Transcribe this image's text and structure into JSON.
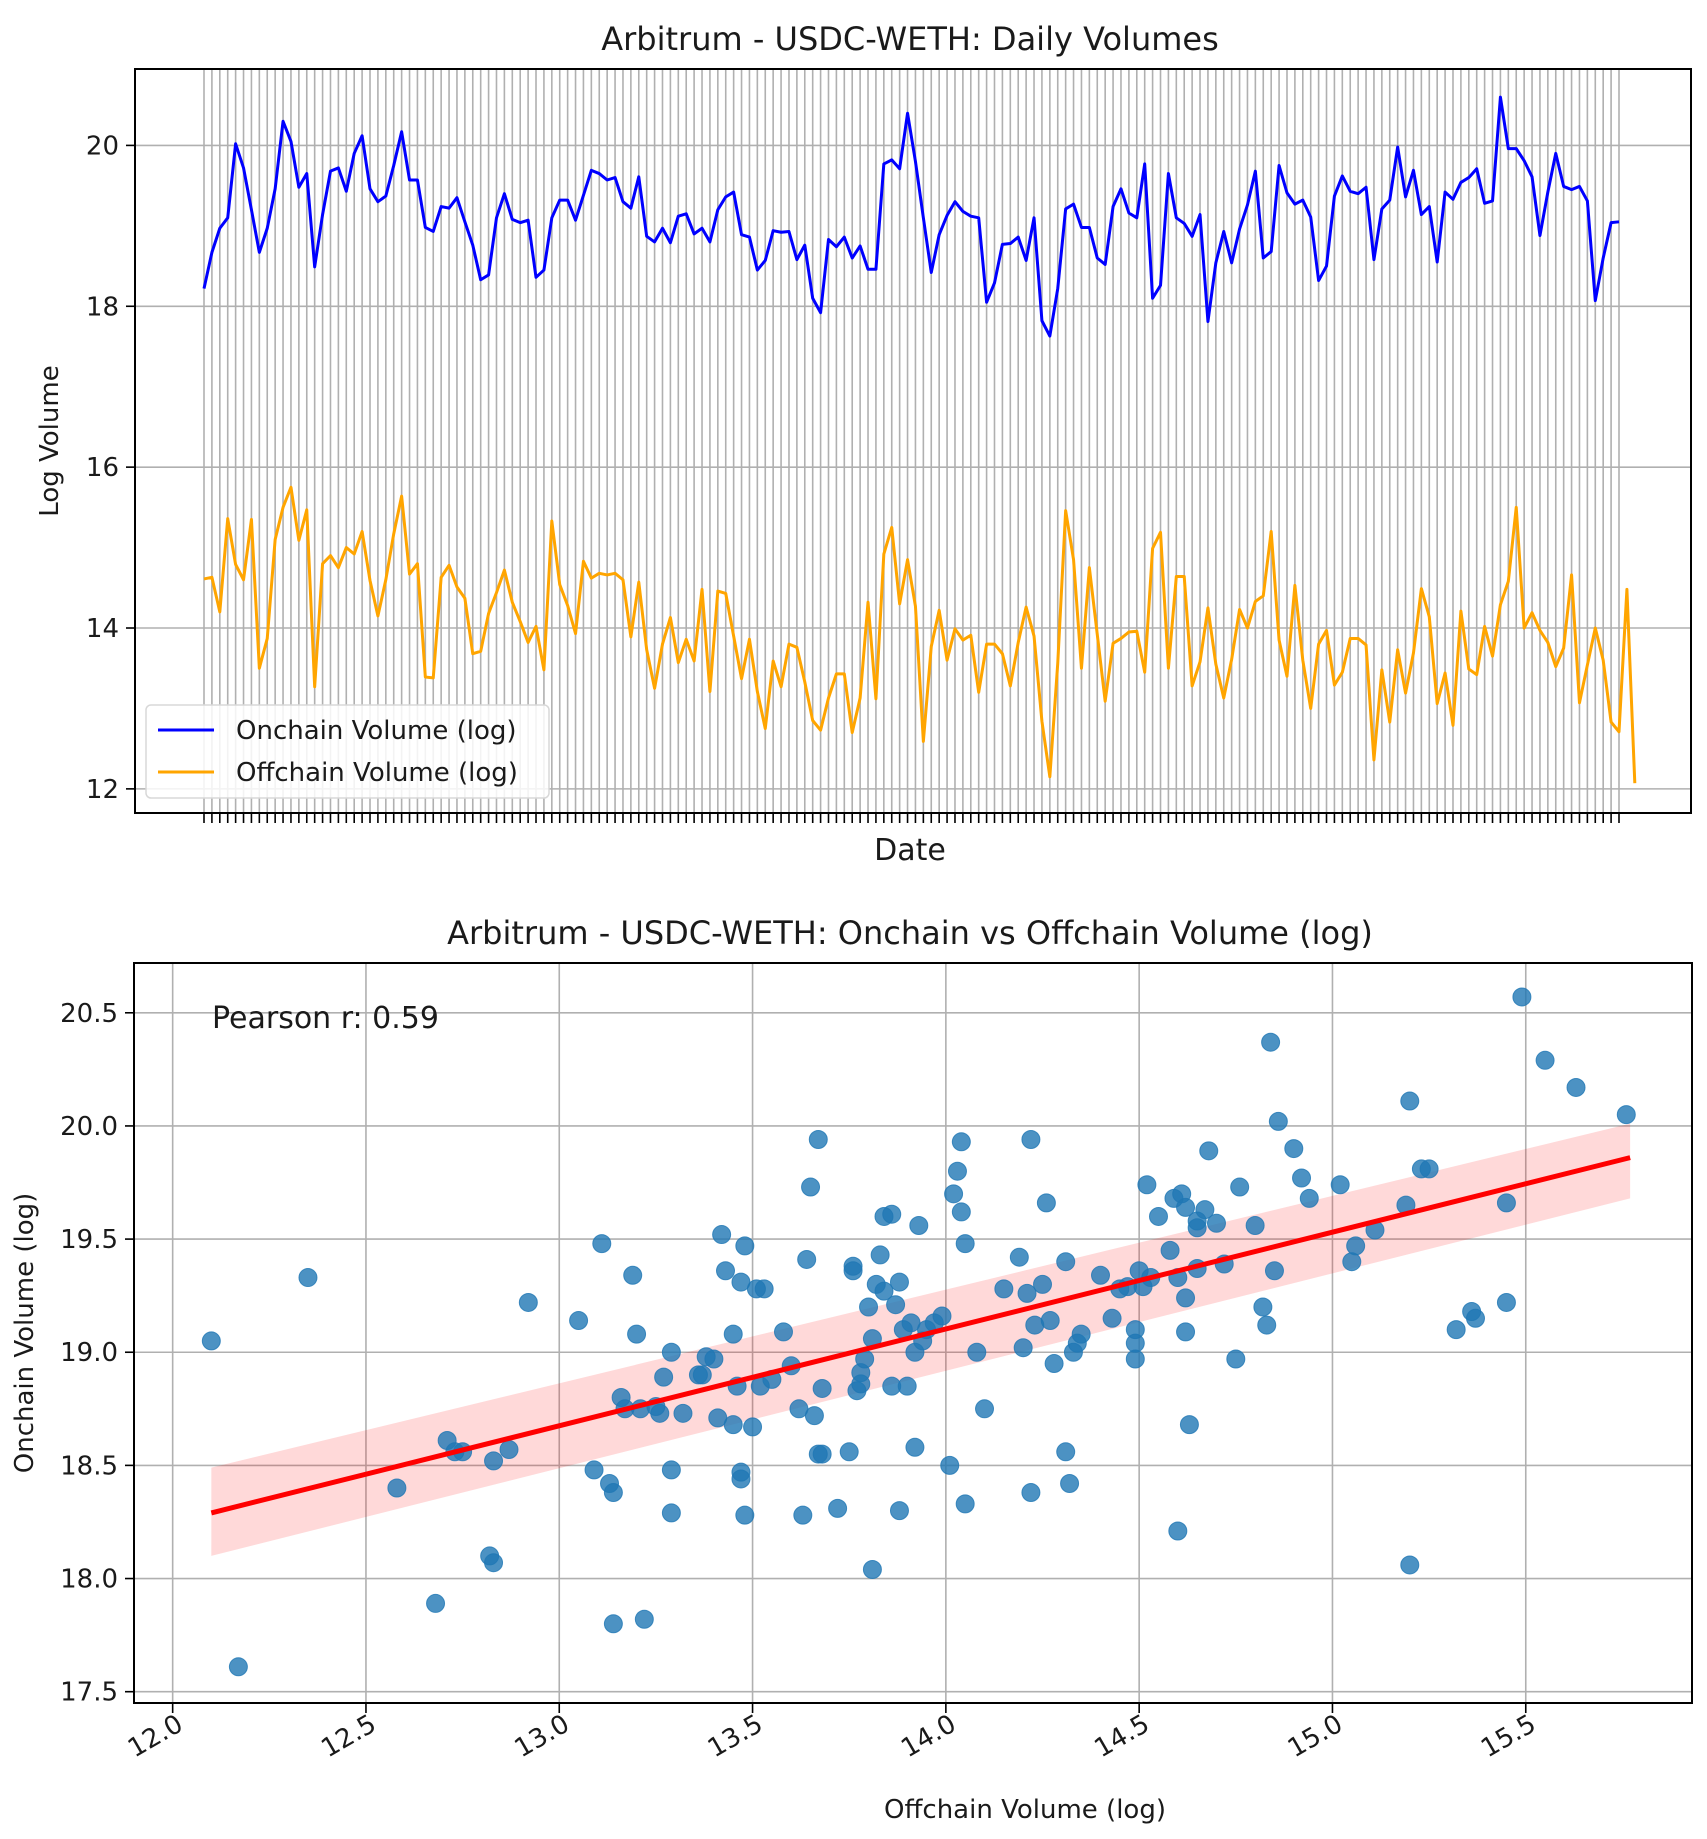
{
  "chart_data": [
    {
      "type": "line",
      "title": "Arbitrum - USDC-WETH: Daily Volumes",
      "xlabel": "Date",
      "ylabel": "Log Volume",
      "ylim": [
        11.7,
        20.95
      ],
      "yticks": [
        12,
        14,
        16,
        18,
        20
      ],
      "ytick_labels": [
        "12",
        "14",
        "16",
        "18",
        "20"
      ],
      "x_tick_labels_shown": false,
      "grid": true,
      "legend": "lower-left",
      "series": [
        {
          "name": "Onchain Volume (log)",
          "color": "#0000ff",
          "values": [
            18.22,
            18.67,
            18.97,
            19.1,
            20.02,
            19.72,
            19.2,
            18.67,
            18.97,
            19.46,
            20.3,
            20.05,
            19.48,
            19.65,
            18.49,
            19.14,
            19.68,
            19.72,
            19.43,
            19.9,
            20.12,
            19.46,
            19.3,
            19.37,
            19.75,
            20.17,
            19.57,
            19.57,
            18.98,
            18.93,
            19.24,
            19.22,
            19.35,
            19.05,
            18.76,
            18.33,
            18.39,
            19.1,
            19.4,
            19.08,
            19.04,
            19.07,
            18.36,
            18.45,
            19.1,
            19.32,
            19.32,
            19.07,
            19.38,
            19.69,
            19.65,
            19.57,
            19.6,
            19.3,
            19.22,
            19.61,
            18.87,
            18.8,
            18.97,
            18.79,
            19.12,
            19.15,
            18.9,
            18.97,
            18.8,
            19.2,
            19.36,
            19.42,
            18.89,
            18.86,
            18.45,
            18.57,
            18.94,
            18.92,
            18.93,
            18.58,
            18.76,
            18.1,
            17.92,
            18.83,
            18.74,
            18.86,
            18.6,
            18.75,
            18.46,
            18.46,
            19.77,
            19.82,
            19.71,
            20.4,
            19.8,
            19.1,
            18.42,
            18.89,
            19.13,
            19.3,
            19.18,
            19.12,
            19.1,
            18.05,
            18.29,
            18.77,
            18.78,
            18.86,
            18.57,
            19.1,
            17.82,
            17.63,
            18.22,
            19.21,
            19.27,
            18.98,
            18.98,
            18.6,
            18.52,
            19.24,
            19.46,
            19.16,
            19.1,
            19.77,
            18.1,
            18.26,
            19.65,
            19.1,
            19.03,
            18.87,
            19.14,
            17.81,
            18.54,
            18.93,
            18.54,
            18.96,
            19.26,
            19.68,
            18.6,
            18.68,
            19.75,
            19.41,
            19.27,
            19.32,
            19.11,
            18.32,
            18.5,
            19.37,
            19.62,
            19.43,
            19.4,
            19.48,
            18.58,
            19.21,
            19.32,
            19.98,
            19.36,
            19.69,
            19.14,
            19.24,
            18.55,
            19.42,
            19.33,
            19.54,
            19.6,
            19.71,
            19.28,
            19.31,
            20.6,
            19.96,
            19.96,
            19.81,
            19.61,
            18.88,
            19.42,
            19.9,
            19.49,
            19.45,
            19.49,
            19.31,
            18.07,
            18.6,
            19.04,
            19.05
          ]
        },
        {
          "name": "Offchain Volume (log)",
          "color": "#ffa500",
          "values": [
            14.61,
            14.63,
            14.2,
            15.36,
            14.79,
            14.6,
            15.35,
            13.5,
            13.87,
            15.1,
            15.5,
            15.75,
            15.09,
            15.47,
            13.27,
            14.8,
            14.9,
            14.75,
            15.0,
            14.92,
            15.2,
            14.59,
            14.15,
            14.6,
            15.17,
            15.64,
            14.67,
            14.8,
            13.39,
            13.38,
            14.63,
            14.78,
            14.51,
            14.37,
            13.68,
            13.71,
            14.18,
            14.44,
            14.72,
            14.32,
            14.08,
            13.82,
            14.02,
            13.48,
            15.33,
            14.54,
            14.28,
            13.93,
            14.83,
            14.62,
            14.68,
            14.66,
            14.68,
            14.6,
            13.89,
            14.57,
            13.73,
            13.25,
            13.8,
            14.13,
            13.57,
            13.86,
            13.59,
            14.48,
            13.21,
            14.46,
            14.43,
            13.9,
            13.37,
            13.86,
            13.21,
            12.75,
            13.59,
            13.27,
            13.8,
            13.76,
            13.33,
            12.85,
            12.73,
            13.13,
            13.43,
            13.43,
            12.7,
            13.13,
            14.32,
            13.12,
            14.92,
            15.25,
            14.3,
            14.85,
            14.27,
            12.59,
            13.77,
            14.22,
            13.6,
            13.99,
            13.85,
            13.91,
            13.2,
            13.8,
            13.8,
            13.68,
            13.28,
            13.82,
            14.26,
            13.9,
            12.84,
            12.15,
            13.56,
            15.46,
            14.85,
            13.5,
            14.75,
            13.92,
            13.09,
            13.81,
            13.87,
            13.95,
            13.96,
            13.45,
            14.99,
            15.19,
            13.5,
            14.64,
            14.64,
            13.28,
            13.58,
            14.25,
            13.55,
            13.13,
            13.61,
            14.23,
            14.0,
            14.33,
            14.4,
            15.2,
            13.85,
            13.4,
            14.53,
            13.6,
            13.0,
            13.8,
            13.97,
            13.29,
            13.45,
            13.87,
            13.87,
            13.79,
            12.36,
            13.48,
            12.83,
            13.73,
            13.19,
            13.69,
            14.49,
            14.14,
            13.06,
            13.44,
            12.79,
            14.21,
            13.49,
            13.42,
            14.02,
            13.65,
            14.29,
            14.58,
            15.5,
            14.0,
            14.19,
            13.97,
            13.82,
            13.52,
            13.75,
            14.66,
            13.07,
            13.54,
            14.0,
            13.6,
            12.83,
            12.71,
            14.48,
            12.07
          ]
        }
      ]
    },
    {
      "type": "scatter",
      "title": "Arbitrum - USDC-WETH: Onchain vs Offchain Volume (log)",
      "xlabel": "Offchain Volume (log)",
      "ylabel": "Onchain Volume (log)",
      "xlim": [
        11.9,
        15.93
      ],
      "ylim": [
        17.45,
        20.72
      ],
      "xticks": [
        12.0,
        12.5,
        13.0,
        13.5,
        14.0,
        14.5,
        15.0,
        15.5
      ],
      "xtick_labels": [
        "12.0",
        "12.5",
        "13.0",
        "13.5",
        "14.0",
        "14.5",
        "15.0",
        "15.5"
      ],
      "yticks": [
        17.5,
        18.0,
        18.5,
        19.0,
        19.5,
        20.0,
        20.5
      ],
      "ytick_labels": [
        "17.5",
        "18.0",
        "18.5",
        "19.0",
        "19.5",
        "20.0",
        "20.5"
      ],
      "grid": true,
      "annotation": "Pearson r: 0.59",
      "point_color": "#1f77b4",
      "regression": {
        "color": "#ff0000",
        "x_range": [
          12.1,
          15.77
        ],
        "y_at_start": 18.29,
        "y_at_end": 19.86,
        "ci_at_start": [
          18.1,
          18.49
        ],
        "ci_at_end": [
          19.68,
          20.01
        ]
      },
      "points": [
        [
          12.1,
          19.05
        ],
        [
          12.17,
          17.61
        ],
        [
          12.35,
          19.33
        ],
        [
          12.58,
          18.4
        ],
        [
          12.68,
          17.89
        ],
        [
          12.71,
          18.61
        ],
        [
          12.73,
          18.56
        ],
        [
          12.75,
          18.56
        ],
        [
          12.82,
          18.1
        ],
        [
          12.83,
          18.07
        ],
        [
          12.83,
          18.52
        ],
        [
          12.87,
          18.57
        ],
        [
          12.92,
          19.22
        ],
        [
          13.05,
          19.14
        ],
        [
          13.09,
          18.48
        ],
        [
          13.11,
          19.48
        ],
        [
          13.13,
          18.42
        ],
        [
          13.14,
          17.8
        ],
        [
          13.14,
          18.38
        ],
        [
          13.16,
          18.8
        ],
        [
          13.17,
          18.75
        ],
        [
          13.19,
          19.34
        ],
        [
          13.2,
          19.08
        ],
        [
          13.21,
          18.75
        ],
        [
          13.22,
          17.82
        ],
        [
          13.25,
          18.76
        ],
        [
          13.26,
          18.73
        ],
        [
          13.27,
          18.89
        ],
        [
          13.29,
          19.0
        ],
        [
          13.29,
          18.48
        ],
        [
          13.29,
          18.29
        ],
        [
          13.32,
          18.73
        ],
        [
          13.36,
          18.9
        ],
        [
          13.37,
          18.9
        ],
        [
          13.38,
          18.98
        ],
        [
          13.4,
          18.97
        ],
        [
          13.41,
          18.71
        ],
        [
          13.42,
          19.52
        ],
        [
          13.43,
          19.36
        ],
        [
          13.45,
          19.08
        ],
        [
          13.45,
          18.68
        ],
        [
          13.46,
          18.85
        ],
        [
          13.47,
          19.31
        ],
        [
          13.47,
          18.47
        ],
        [
          13.47,
          18.44
        ],
        [
          13.48,
          19.47
        ],
        [
          13.48,
          18.28
        ],
        [
          13.5,
          18.67
        ],
        [
          13.51,
          19.28
        ],
        [
          13.52,
          18.85
        ],
        [
          13.53,
          19.28
        ],
        [
          13.55,
          18.88
        ],
        [
          13.58,
          19.09
        ],
        [
          13.6,
          18.94
        ],
        [
          13.62,
          18.75
        ],
        [
          13.63,
          18.28
        ],
        [
          13.64,
          19.41
        ],
        [
          13.65,
          19.73
        ],
        [
          13.66,
          18.72
        ],
        [
          13.67,
          19.94
        ],
        [
          13.67,
          18.55
        ],
        [
          13.68,
          18.55
        ],
        [
          13.68,
          18.84
        ],
        [
          13.72,
          18.31
        ],
        [
          13.75,
          18.56
        ],
        [
          13.76,
          19.38
        ],
        [
          13.76,
          19.36
        ],
        [
          13.77,
          18.83
        ],
        [
          13.78,
          18.86
        ],
        [
          13.78,
          18.91
        ],
        [
          13.79,
          18.97
        ],
        [
          13.8,
          19.2
        ],
        [
          13.81,
          18.04
        ],
        [
          13.81,
          19.06
        ],
        [
          13.82,
          19.3
        ],
        [
          13.83,
          19.43
        ],
        [
          13.84,
          19.27
        ],
        [
          13.84,
          19.6
        ],
        [
          13.86,
          19.61
        ],
        [
          13.86,
          18.85
        ],
        [
          13.87,
          19.21
        ],
        [
          13.88,
          19.31
        ],
        [
          13.88,
          18.3
        ],
        [
          13.89,
          19.1
        ],
        [
          13.9,
          18.85
        ],
        [
          13.91,
          19.13
        ],
        [
          13.92,
          19.0
        ],
        [
          13.92,
          18.58
        ],
        [
          13.93,
          19.56
        ],
        [
          13.94,
          19.05
        ],
        [
          13.95,
          19.1
        ],
        [
          13.97,
          19.13
        ],
        [
          13.99,
          19.16
        ],
        [
          14.01,
          18.5
        ],
        [
          14.02,
          19.7
        ],
        [
          14.03,
          19.8
        ],
        [
          14.04,
          19.93
        ],
        [
          14.04,
          19.62
        ],
        [
          14.05,
          18.33
        ],
        [
          14.05,
          19.48
        ],
        [
          14.08,
          19.0
        ],
        [
          14.1,
          18.75
        ],
        [
          14.15,
          19.28
        ],
        [
          14.19,
          19.42
        ],
        [
          14.2,
          19.02
        ],
        [
          14.21,
          19.26
        ],
        [
          14.22,
          19.94
        ],
        [
          14.22,
          18.38
        ],
        [
          14.23,
          19.12
        ],
        [
          14.25,
          19.3
        ],
        [
          14.26,
          19.66
        ],
        [
          14.27,
          19.14
        ],
        [
          14.28,
          18.95
        ],
        [
          14.31,
          19.4
        ],
        [
          14.31,
          18.56
        ],
        [
          14.32,
          18.42
        ],
        [
          14.33,
          19.0
        ],
        [
          14.34,
          19.04
        ],
        [
          14.35,
          19.08
        ],
        [
          14.4,
          19.34
        ],
        [
          14.43,
          19.15
        ],
        [
          14.45,
          19.28
        ],
        [
          14.47,
          19.29
        ],
        [
          14.49,
          18.97
        ],
        [
          14.49,
          19.04
        ],
        [
          14.49,
          19.1
        ],
        [
          14.5,
          19.36
        ],
        [
          14.51,
          19.29
        ],
        [
          14.52,
          19.74
        ],
        [
          14.53,
          19.33
        ],
        [
          14.55,
          19.6
        ],
        [
          14.58,
          19.45
        ],
        [
          14.59,
          19.68
        ],
        [
          14.6,
          18.21
        ],
        [
          14.6,
          19.33
        ],
        [
          14.61,
          19.7
        ],
        [
          14.62,
          19.64
        ],
        [
          14.62,
          19.24
        ],
        [
          14.62,
          19.09
        ],
        [
          14.63,
          18.68
        ],
        [
          14.65,
          19.58
        ],
        [
          14.65,
          19.55
        ],
        [
          14.65,
          19.37
        ],
        [
          14.67,
          19.63
        ],
        [
          14.68,
          19.89
        ],
        [
          14.7,
          19.57
        ],
        [
          14.72,
          19.39
        ],
        [
          14.75,
          18.97
        ],
        [
          14.76,
          19.73
        ],
        [
          14.8,
          19.56
        ],
        [
          14.82,
          19.2
        ],
        [
          14.83,
          19.12
        ],
        [
          14.84,
          20.37
        ],
        [
          14.85,
          19.36
        ],
        [
          14.86,
          20.02
        ],
        [
          14.9,
          19.9
        ],
        [
          14.92,
          19.77
        ],
        [
          14.94,
          19.68
        ],
        [
          15.02,
          19.74
        ],
        [
          15.05,
          19.4
        ],
        [
          15.06,
          19.47
        ],
        [
          15.11,
          19.54
        ],
        [
          15.19,
          19.65
        ],
        [
          15.2,
          20.11
        ],
        [
          15.2,
          18.06
        ],
        [
          15.23,
          19.81
        ],
        [
          15.25,
          19.81
        ],
        [
          15.32,
          19.1
        ],
        [
          15.36,
          19.18
        ],
        [
          15.37,
          19.15
        ],
        [
          15.45,
          19.22
        ],
        [
          15.45,
          19.66
        ],
        [
          15.49,
          20.57
        ],
        [
          15.55,
          20.29
        ],
        [
          15.63,
          20.17
        ],
        [
          15.76,
          20.05
        ]
      ]
    }
  ]
}
